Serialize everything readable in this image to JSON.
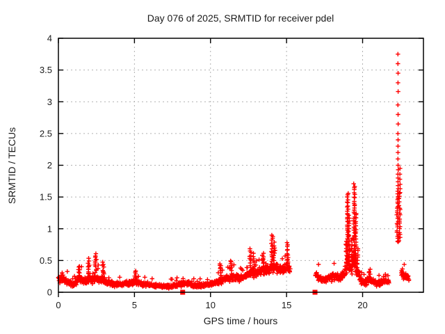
{
  "chart_data": {
    "type": "scatter",
    "title": "Day 076 of 2025, SRMTID for receiver pdel",
    "xlabel": "GPS time / hours",
    "ylabel": "SRMTID / TECUs",
    "xlim": [
      0,
      24
    ],
    "ylim": [
      0,
      4
    ],
    "xticks": [
      0,
      5,
      10,
      15,
      20
    ],
    "yticks": [
      0,
      0.5,
      1,
      1.5,
      2,
      2.5,
      3,
      3.5,
      4
    ],
    "grid": true,
    "grid_color": "#b0b0b0",
    "border_color": "#000000",
    "point_color": "#ff0000",
    "marker": "plus",
    "legend_position": "none",
    "seed": 76,
    "band_segments": [
      {
        "dt": 0.03,
        "pts_per_step": 2,
        "anchors": [
          [
            0.0,
            0.2,
            0.08
          ],
          [
            0.35,
            0.22,
            0.08
          ],
          [
            0.7,
            0.15,
            0.06
          ],
          [
            1.0,
            0.12,
            0.05
          ],
          [
            1.3,
            0.22,
            0.09
          ],
          [
            1.55,
            0.19,
            0.08
          ],
          [
            1.8,
            0.16,
            0.07
          ],
          [
            2.0,
            0.22,
            0.1
          ],
          [
            2.2,
            0.18,
            0.08
          ],
          [
            2.45,
            0.24,
            0.12
          ],
          [
            2.7,
            0.18,
            0.08
          ],
          [
            2.95,
            0.2,
            0.09
          ],
          [
            3.2,
            0.14,
            0.06
          ],
          [
            3.7,
            0.13,
            0.06
          ],
          [
            4.2,
            0.12,
            0.05
          ],
          [
            4.7,
            0.15,
            0.07
          ],
          [
            5.1,
            0.17,
            0.07
          ],
          [
            5.5,
            0.12,
            0.05
          ],
          [
            6.0,
            0.11,
            0.05
          ],
          [
            6.5,
            0.1,
            0.04
          ],
          [
            7.0,
            0.09,
            0.04
          ],
          [
            7.5,
            0.1,
            0.05
          ],
          [
            8.0,
            0.13,
            0.06
          ],
          [
            8.4,
            0.15,
            0.06
          ],
          [
            8.8,
            0.11,
            0.05
          ],
          [
            9.3,
            0.1,
            0.05
          ],
          [
            9.8,
            0.12,
            0.05
          ],
          [
            10.3,
            0.15,
            0.06
          ],
          [
            10.7,
            0.19,
            0.08
          ],
          [
            11.1,
            0.21,
            0.08
          ],
          [
            11.5,
            0.25,
            0.09
          ],
          [
            11.9,
            0.22,
            0.08
          ],
          [
            12.3,
            0.26,
            0.09
          ],
          [
            12.7,
            0.32,
            0.11
          ],
          [
            13.1,
            0.3,
            0.1
          ],
          [
            13.5,
            0.36,
            0.12
          ],
          [
            13.9,
            0.38,
            0.13
          ],
          [
            14.2,
            0.4,
            0.13
          ],
          [
            14.6,
            0.34,
            0.11
          ],
          [
            15.0,
            0.4,
            0.12
          ],
          [
            15.25,
            0.36,
            0.09
          ]
        ]
      },
      {
        "dt": 0.03,
        "pts_per_step": 2,
        "anchors": [
          [
            16.9,
            0.28,
            0.09
          ],
          [
            17.1,
            0.24,
            0.08
          ],
          [
            17.45,
            0.18,
            0.07
          ],
          [
            17.8,
            0.22,
            0.08
          ],
          [
            18.1,
            0.26,
            0.1
          ],
          [
            18.45,
            0.22,
            0.08
          ],
          [
            18.75,
            0.28,
            0.1
          ],
          [
            19.0,
            0.5,
            0.18
          ],
          [
            19.2,
            0.42,
            0.15
          ],
          [
            19.45,
            0.55,
            0.2
          ],
          [
            19.65,
            0.32,
            0.12
          ],
          [
            19.85,
            0.2,
            0.08
          ],
          [
            20.1,
            0.15,
            0.06
          ],
          [
            20.45,
            0.2,
            0.08
          ],
          [
            20.75,
            0.15,
            0.06
          ],
          [
            21.1,
            0.14,
            0.06
          ],
          [
            21.45,
            0.17,
            0.06
          ],
          [
            21.75,
            0.16,
            0.05
          ]
        ]
      },
      {
        "dt": 0.03,
        "pts_per_step": 2,
        "anchors": [
          [
            22.55,
            0.32,
            0.1
          ],
          [
            22.7,
            0.24,
            0.08
          ],
          [
            22.9,
            0.24,
            0.07
          ],
          [
            23.05,
            0.22,
            0.05
          ]
        ]
      }
    ],
    "spikes": [
      [
        1.35,
        0.24,
        0.42,
        8,
        0.05
      ],
      [
        2.0,
        0.28,
        0.52,
        10,
        0.05
      ],
      [
        2.45,
        0.32,
        0.6,
        12,
        0.05
      ],
      [
        2.95,
        0.28,
        0.46,
        8,
        0.05
      ],
      [
        5.1,
        0.2,
        0.33,
        6,
        0.05
      ],
      [
        10.65,
        0.28,
        0.46,
        8,
        0.04
      ],
      [
        11.35,
        0.3,
        0.5,
        8,
        0.05
      ],
      [
        12.62,
        0.4,
        0.68,
        10,
        0.05
      ],
      [
        12.85,
        0.38,
        0.6,
        8,
        0.05
      ],
      [
        13.45,
        0.42,
        0.62,
        8,
        0.05
      ],
      [
        14.05,
        0.5,
        0.9,
        14,
        0.05
      ],
      [
        14.18,
        0.45,
        0.78,
        9,
        0.04
      ],
      [
        15.05,
        0.45,
        0.78,
        11,
        0.05
      ],
      [
        18.95,
        0.3,
        0.8,
        10,
        0.04
      ],
      [
        19.02,
        0.38,
        1.55,
        40,
        0.035
      ],
      [
        19.1,
        0.35,
        1.2,
        22,
        0.035
      ],
      [
        19.3,
        0.3,
        0.85,
        12,
        0.04
      ],
      [
        19.45,
        0.4,
        1.7,
        42,
        0.04
      ],
      [
        19.55,
        0.45,
        1.25,
        20,
        0.035
      ],
      [
        19.68,
        0.28,
        0.7,
        9,
        0.04
      ],
      [
        20.45,
        0.18,
        0.36,
        7,
        0.05
      ],
      [
        22.3,
        0.78,
        1.62,
        26,
        0.05
      ],
      [
        22.43,
        0.82,
        1.55,
        18,
        0.04
      ]
    ],
    "columns": [
      {
        "x": 22.33,
        "ys": [
          3.75,
          3.6,
          3.45,
          3.3,
          3.16,
          2.95,
          2.8,
          2.65,
          2.5,
          2.4,
          2.3,
          2.2,
          2.1,
          2.0,
          1.93,
          1.86,
          1.8,
          1.74,
          1.68
        ]
      },
      {
        "x": 22.46,
        "ys": [
          1.95,
          1.86,
          1.78,
          1.7,
          1.63,
          1.57
        ]
      }
    ],
    "squares": [
      [
        8.17,
        0
      ],
      [
        16.87,
        0
      ]
    ]
  }
}
